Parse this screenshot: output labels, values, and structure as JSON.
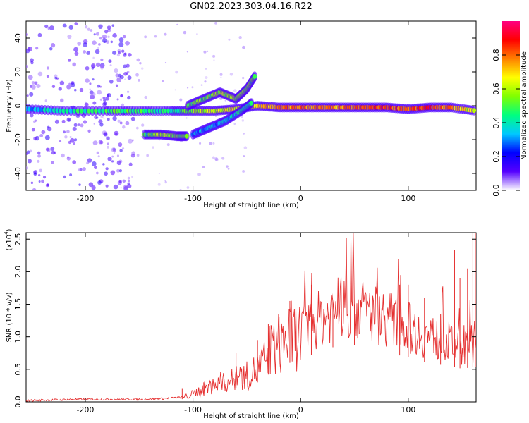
{
  "title": "GN02.2023.303.04.16.R22",
  "chart_data": [
    {
      "type": "heatmap",
      "xlabel": "Height of straight line (km)",
      "ylabel": "Frequency (Hz)",
      "xlim": [
        -255,
        163
      ],
      "ylim": [
        -50,
        50
      ],
      "x_ticks": [
        -200,
        -100,
        0,
        100
      ],
      "y_ticks": [
        -40,
        -20,
        0,
        20,
        40
      ],
      "colorbar": {
        "label": "Normalized spectral amplitude",
        "range": [
          0.0,
          1.0
        ],
        "ticks": [
          "0.0",
          "0.2",
          "0.4",
          "0.6",
          "0.8"
        ],
        "colors": [
          "#ffffff",
          "#5500ff",
          "#0000ff",
          "#00c8ff",
          "#00ff80",
          "#80ff00",
          "#ffff00",
          "#ff8000",
          "#ff0000",
          "#ff0080"
        ]
      },
      "tracks": [
        {
          "name": "",
          "x": [
            -255,
            -220,
            -180,
            -150,
            -120,
            -100,
            -80,
            -60,
            -40,
            -20,
            0,
            20,
            40,
            60,
            80,
            100,
            120,
            140,
            163
          ],
          "y": [
            -2,
            -3,
            -3,
            -3,
            -3,
            -3,
            -3,
            -2,
            0,
            -1,
            -1,
            -1,
            -1,
            -1,
            -1,
            -2,
            -1,
            -1,
            -3
          ],
          "amp": [
            0.3,
            0.4,
            0.45,
            0.5,
            0.4,
            0.55,
            0.6,
            0.65,
            0.7,
            0.75,
            0.8,
            0.75,
            0.75,
            0.8,
            0.85,
            0.8,
            0.85,
            0.75,
            0.6
          ]
        },
        {
          "name": "",
          "x": [
            -145,
            -130,
            -115,
            -105
          ],
          "y": [
            -17,
            -17,
            -18,
            -18
          ],
          "amp": [
            0.45,
            0.6,
            0.55,
            0.5
          ]
        },
        {
          "name": "",
          "x": [
            -105,
            -90,
            -75,
            -60,
            -50,
            -42
          ],
          "y": [
            0,
            4,
            8,
            4,
            10,
            18
          ],
          "amp": [
            0.5,
            0.55,
            0.55,
            0.6,
            0.55,
            0.5
          ]
        },
        {
          "name": "",
          "x": [
            -100,
            -85,
            -70,
            -55,
            -45
          ],
          "y": [
            -17,
            -13,
            -9,
            -3,
            2
          ],
          "amp": [
            0.3,
            0.3,
            0.35,
            0.4,
            0.4
          ]
        }
      ]
    },
    {
      "type": "line",
      "xlabel": "Height of straight line (km)",
      "ylabel": "SNR (10 * v/v)",
      "y_multiplier_label": "(x10",
      "y_multiplier_exp": "4",
      "xlim": [
        -255,
        163
      ],
      "ylim": [
        0,
        2.6
      ],
      "x_ticks": [
        -200,
        -100,
        0,
        100
      ],
      "y_ticks": [
        "0.0",
        "0.5",
        "1.0",
        "1.5",
        "2.0",
        "2.5"
      ],
      "series": [
        {
          "name": "",
          "color": "#e53030",
          "x": [
            -255,
            -230,
            -210,
            -190,
            -170,
            -150,
            -130,
            -110,
            -100,
            -90,
            -80,
            -70,
            -60,
            -50,
            -40,
            -30,
            -20,
            -10,
            0,
            10,
            20,
            30,
            40,
            50,
            60,
            70,
            80,
            90,
            100,
            110,
            120,
            130,
            140,
            150,
            163
          ],
          "y": [
            0.02,
            0.03,
            0.04,
            0.04,
            0.04,
            0.04,
            0.05,
            0.07,
            0.12,
            0.2,
            0.25,
            0.3,
            0.35,
            0.4,
            0.5,
            0.7,
            0.9,
            1.0,
            1.05,
            1.2,
            1.3,
            1.4,
            1.45,
            1.45,
            1.4,
            1.35,
            1.3,
            1.2,
            1.15,
            1.05,
            1.0,
            0.95,
            0.9,
            0.85,
            0.9
          ],
          "spikes": [
            [
              -110,
              0.2
            ],
            [
              -90,
              0.3
            ],
            [
              -60,
              0.75
            ],
            [
              -40,
              0.95
            ],
            [
              -30,
              1.2
            ],
            [
              -20,
              1.3
            ],
            [
              -10,
              1.55
            ],
            [
              10,
              1.8
            ],
            [
              30,
              1.55
            ],
            [
              50,
              1.5
            ],
            [
              92,
              1.8
            ],
            [
              100,
              1.8
            ],
            [
              115,
              1.6
            ],
            [
              130,
              1.35
            ],
            [
              143,
              2.33
            ],
            [
              148,
              1.9
            ],
            [
              155,
              2.05
            ],
            [
              160,
              2.6
            ],
            [
              163,
              2.6
            ]
          ]
        }
      ]
    }
  ]
}
